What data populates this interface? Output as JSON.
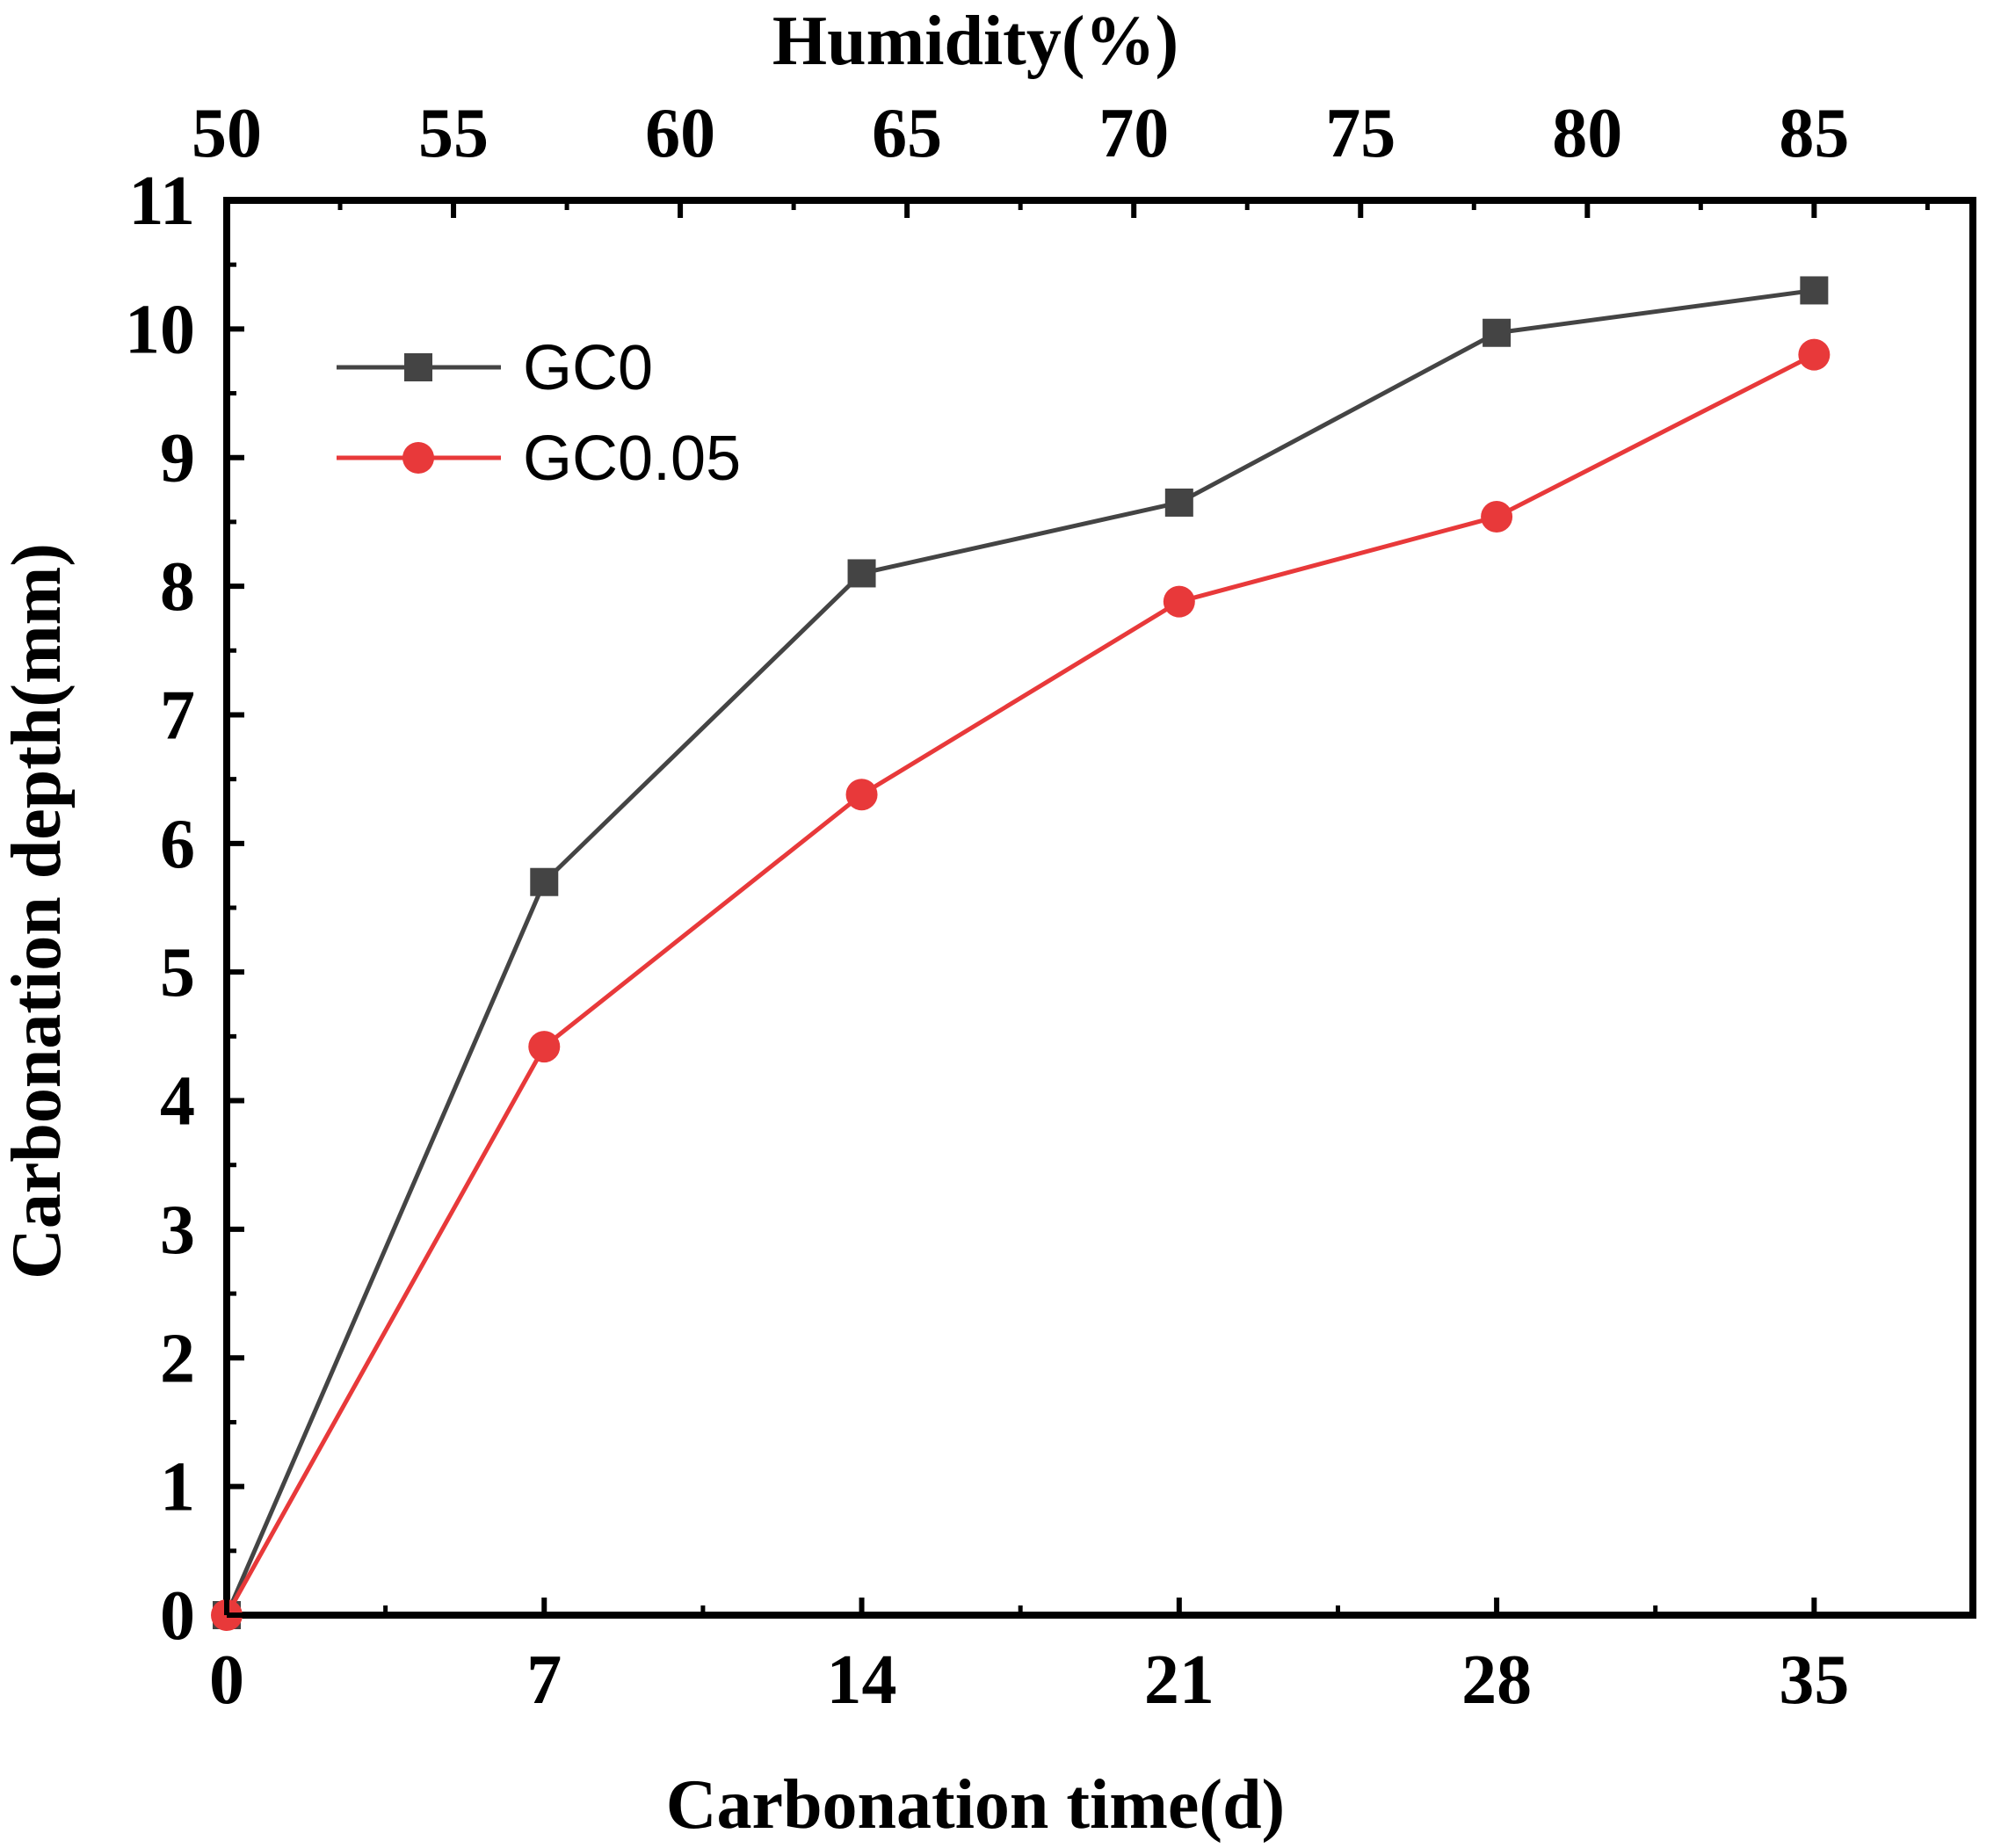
{
  "chart_data": {
    "type": "line",
    "title": "",
    "xlabel": "Carbonation time(d)",
    "ylabel": "Carbonation depth(mm)",
    "x2label": "Humidity(%)",
    "xlim": [
      0,
      38.5
    ],
    "ylim": [
      0,
      11
    ],
    "x2lim": [
      50,
      88.5
    ],
    "xticks": [
      0,
      7,
      14,
      21,
      28,
      35
    ],
    "yticks": [
      0,
      1,
      2,
      3,
      4,
      5,
      6,
      7,
      8,
      9,
      10,
      11
    ],
    "x2ticks": [
      50,
      55,
      60,
      65,
      70,
      75,
      80,
      85
    ],
    "x": [
      0,
      7,
      14,
      21,
      28,
      35
    ],
    "series": [
      {
        "name": "GC0",
        "values": [
          0,
          5.7,
          8.1,
          8.65,
          9.97,
          10.3
        ],
        "color": "#444444",
        "marker": "square"
      },
      {
        "name": "GC0.05",
        "values": [
          0,
          4.42,
          6.38,
          7.88,
          8.54,
          9.8
        ],
        "color": "#e8393a",
        "marker": "circle"
      }
    ],
    "legend": "top-left",
    "grid": false
  }
}
